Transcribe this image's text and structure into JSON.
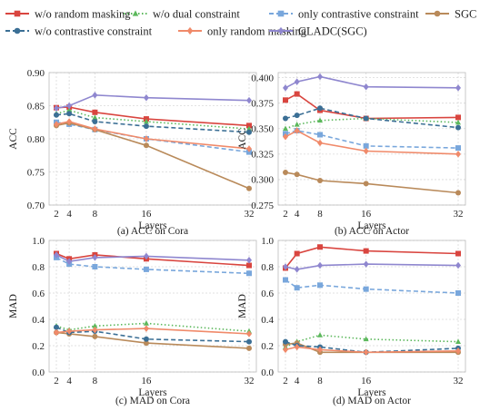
{
  "legend": [
    {
      "name": "w/o random masking",
      "color": "#d9453f",
      "marker": "square",
      "dash": "solid"
    },
    {
      "name": "w/o dual constraint",
      "color": "#5cb85c",
      "marker": "triangle",
      "dash": "dotted"
    },
    {
      "name": "only contrastive constraint",
      "color": "#79a7dc",
      "marker": "square",
      "dash": "dashed"
    },
    {
      "name": "SGC",
      "color": "#b98a5a",
      "marker": "circle",
      "dash": "solid"
    },
    {
      "name": "w/o contrastive constraint",
      "color": "#3b6f95",
      "marker": "circle",
      "dash": "dashed"
    },
    {
      "name": "only random masking",
      "color": "#f08a6a",
      "marker": "diamond",
      "dash": "solid"
    },
    {
      "name": "GLADC(SGC)",
      "color": "#8f87cf",
      "marker": "diamond",
      "dash": "solid"
    }
  ],
  "chart_data": [
    {
      "type": "line",
      "caption": "(a) ACC on Cora",
      "xlabel": "Layers",
      "ylabel": "ACC",
      "x": [
        2,
        4,
        8,
        16,
        32
      ],
      "xticks": [
        2,
        4,
        8,
        16,
        32
      ],
      "ylim": [
        0.7,
        0.9
      ],
      "yticks": [
        "0.70",
        "0.75",
        "0.80",
        "0.85",
        "0.90"
      ],
      "grid": true,
      "series": [
        {
          "name": "w/o random masking",
          "values": [
            0.847,
            0.848,
            0.84,
            0.83,
            0.82
          ]
        },
        {
          "name": "w/o dual constraint",
          "values": [
            0.838,
            0.843,
            0.832,
            0.826,
            0.815
          ]
        },
        {
          "name": "only contrastive constraint",
          "values": [
            0.825,
            0.822,
            0.814,
            0.8,
            0.78
          ]
        },
        {
          "name": "SGC",
          "values": [
            0.82,
            0.824,
            0.814,
            0.79,
            0.725
          ]
        },
        {
          "name": "w/o contrastive constraint",
          "values": [
            0.836,
            0.838,
            0.826,
            0.819,
            0.81
          ]
        },
        {
          "name": "only random masking",
          "values": [
            0.822,
            0.826,
            0.815,
            0.8,
            0.785
          ]
        },
        {
          "name": "GLADC(SGC)",
          "values": [
            0.846,
            0.85,
            0.866,
            0.862,
            0.858
          ]
        }
      ]
    },
    {
      "type": "line",
      "caption": "(b) ACC on Actor",
      "xlabel": "Layers",
      "ylabel": "ACC",
      "x": [
        2,
        4,
        8,
        16,
        32
      ],
      "xticks": [
        2,
        4,
        8,
        16,
        32
      ],
      "ylim": [
        0.275,
        0.405
      ],
      "yticks": [
        "0.275",
        "0.300",
        "0.325",
        "0.350",
        "0.375",
        "0.400"
      ],
      "grid": true,
      "series": [
        {
          "name": "w/o random masking",
          "values": [
            0.378,
            0.384,
            0.368,
            0.36,
            0.361
          ]
        },
        {
          "name": "w/o dual constraint",
          "values": [
            0.35,
            0.354,
            0.358,
            0.36,
            0.356
          ]
        },
        {
          "name": "only contrastive constraint",
          "values": [
            0.345,
            0.348,
            0.344,
            0.333,
            0.331
          ]
        },
        {
          "name": "SGC",
          "values": [
            0.307,
            0.305,
            0.299,
            0.296,
            0.287
          ]
        },
        {
          "name": "w/o contrastive constraint",
          "values": [
            0.36,
            0.363,
            0.37,
            0.36,
            0.351
          ]
        },
        {
          "name": "only random masking",
          "values": [
            0.342,
            0.348,
            0.336,
            0.328,
            0.325
          ]
        },
        {
          "name": "GLADC(SGC)",
          "values": [
            0.39,
            0.396,
            0.401,
            0.391,
            0.39
          ]
        }
      ]
    },
    {
      "type": "line",
      "caption": "(c) MAD on Cora",
      "xlabel": "Layers",
      "ylabel": "MAD",
      "x": [
        2,
        4,
        8,
        16,
        32
      ],
      "xticks": [
        2,
        4,
        8,
        16,
        32
      ],
      "ylim": [
        0.0,
        1.0
      ],
      "yticks": [
        "0.0",
        "0.2",
        "0.4",
        "0.6",
        "0.8",
        "1.0"
      ],
      "grid": true,
      "series": [
        {
          "name": "w/o random masking",
          "values": [
            0.9,
            0.86,
            0.89,
            0.86,
            0.81
          ]
        },
        {
          "name": "w/o dual constraint",
          "values": [
            0.35,
            0.32,
            0.35,
            0.37,
            0.31
          ]
        },
        {
          "name": "only contrastive constraint",
          "values": [
            0.87,
            0.82,
            0.8,
            0.78,
            0.75
          ]
        },
        {
          "name": "SGC",
          "values": [
            0.3,
            0.29,
            0.27,
            0.22,
            0.18
          ]
        },
        {
          "name": "w/o contrastive constraint",
          "values": [
            0.34,
            0.3,
            0.31,
            0.25,
            0.23
          ]
        },
        {
          "name": "only random masking",
          "values": [
            0.3,
            0.31,
            0.32,
            0.33,
            0.29
          ]
        },
        {
          "name": "GLADC(SGC)",
          "values": [
            0.89,
            0.84,
            0.87,
            0.88,
            0.85
          ]
        }
      ]
    },
    {
      "type": "line",
      "caption": "(d) MAD on Actor",
      "xlabel": "Layers",
      "ylabel": "MAD",
      "x": [
        2,
        4,
        8,
        16,
        32
      ],
      "xticks": [
        2,
        4,
        8,
        16,
        32
      ],
      "ylim": [
        0.0,
        1.0
      ],
      "yticks": [
        "0.0",
        "0.2",
        "0.4",
        "0.6",
        "0.8",
        "1.0"
      ],
      "grid": true,
      "series": [
        {
          "name": "w/o random masking",
          "values": [
            0.79,
            0.9,
            0.95,
            0.92,
            0.9
          ]
        },
        {
          "name": "w/o dual constraint",
          "values": [
            0.19,
            0.23,
            0.28,
            0.25,
            0.23
          ]
        },
        {
          "name": "only contrastive constraint",
          "values": [
            0.7,
            0.64,
            0.66,
            0.63,
            0.6
          ]
        },
        {
          "name": "SGC",
          "values": [
            0.21,
            0.22,
            0.15,
            0.15,
            0.15
          ]
        },
        {
          "name": "w/o contrastive constraint",
          "values": [
            0.23,
            0.2,
            0.19,
            0.15,
            0.18
          ]
        },
        {
          "name": "only random masking",
          "values": [
            0.17,
            0.19,
            0.17,
            0.15,
            0.16
          ]
        },
        {
          "name": "GLADC(SGC)",
          "values": [
            0.8,
            0.78,
            0.81,
            0.82,
            0.81
          ]
        }
      ]
    }
  ]
}
